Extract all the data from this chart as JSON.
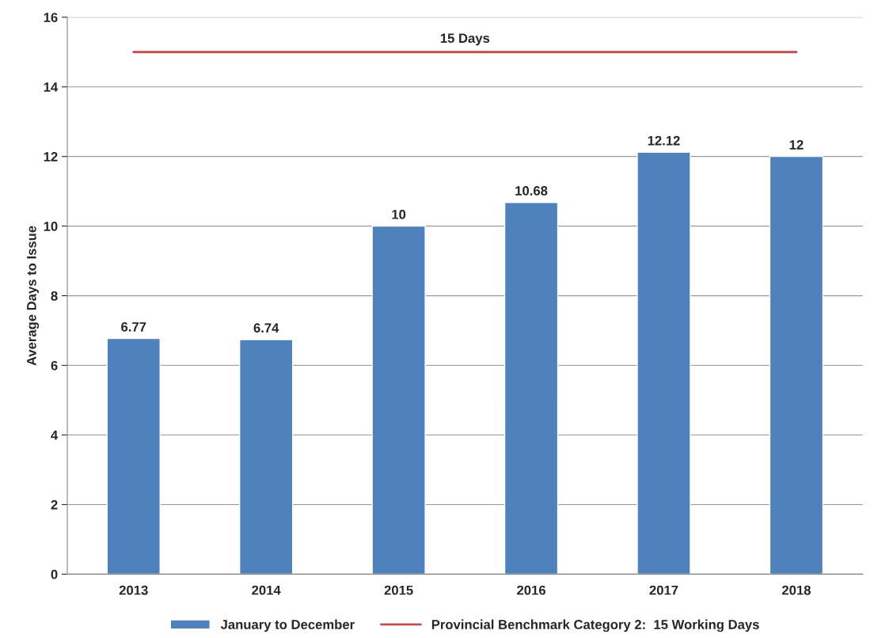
{
  "chart_data": {
    "type": "bar",
    "ylabel": "Average Days to Issue",
    "categories": [
      "2013",
      "2014",
      "2015",
      "2016",
      "2017",
      "2018"
    ],
    "series": [
      {
        "name": "January to December",
        "color": "#4f81bd",
        "values": [
          6.77,
          6.74,
          10,
          10.68,
          12.12,
          12
        ],
        "value_labels": [
          "6.77",
          "6.74",
          "10",
          "10.68",
          "12.12",
          "12"
        ]
      },
      {
        "name": "Provincial Benchmark Category 2:  15 Working Days",
        "type": "line",
        "color": "#c0504d",
        "values": [
          15,
          15,
          15,
          15,
          15,
          15
        ]
      }
    ],
    "annotations": [
      {
        "text": "15 Days",
        "y": 15
      }
    ],
    "ylim": [
      0,
      16
    ],
    "yticks": [
      0,
      2,
      4,
      6,
      8,
      10,
      12,
      14,
      16
    ],
    "grid": "y",
    "legend": "bottom"
  }
}
